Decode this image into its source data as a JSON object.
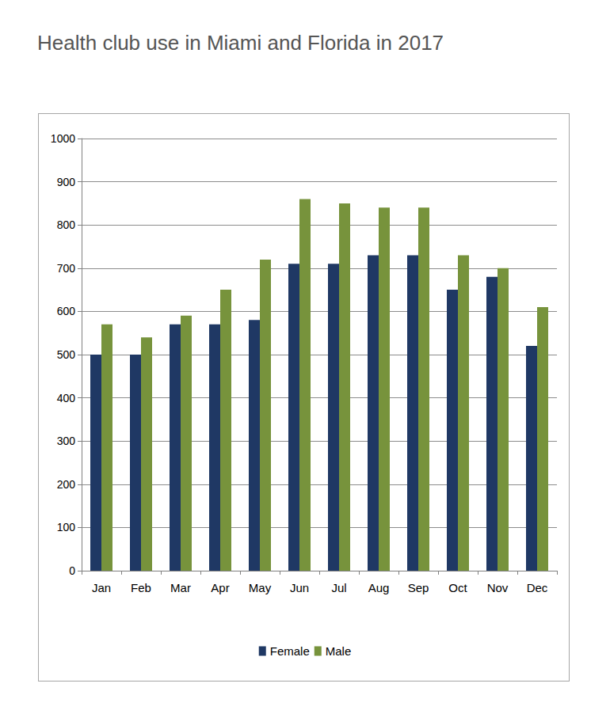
{
  "chart_data": {
    "type": "bar",
    "title": "Health club use in Miami and Florida in 2017",
    "categories": [
      "Jan",
      "Feb",
      "Mar",
      "Apr",
      "May",
      "Jun",
      "Jul",
      "Aug",
      "Sep",
      "Oct",
      "Nov",
      "Dec"
    ],
    "series": [
      {
        "name": "Female",
        "color": "#1f3864",
        "values": [
          500,
          500,
          570,
          570,
          580,
          710,
          710,
          730,
          730,
          650,
          680,
          520
        ]
      },
      {
        "name": "Male",
        "color": "#77933c",
        "values": [
          570,
          540,
          590,
          650,
          720,
          860,
          850,
          840,
          840,
          730,
          700,
          610
        ]
      }
    ],
    "ylim": [
      0,
      1000
    ],
    "yticks": [
      0,
      100,
      200,
      300,
      400,
      500,
      600,
      700,
      800,
      900,
      1000
    ],
    "grid": true,
    "legend": "bottom"
  }
}
